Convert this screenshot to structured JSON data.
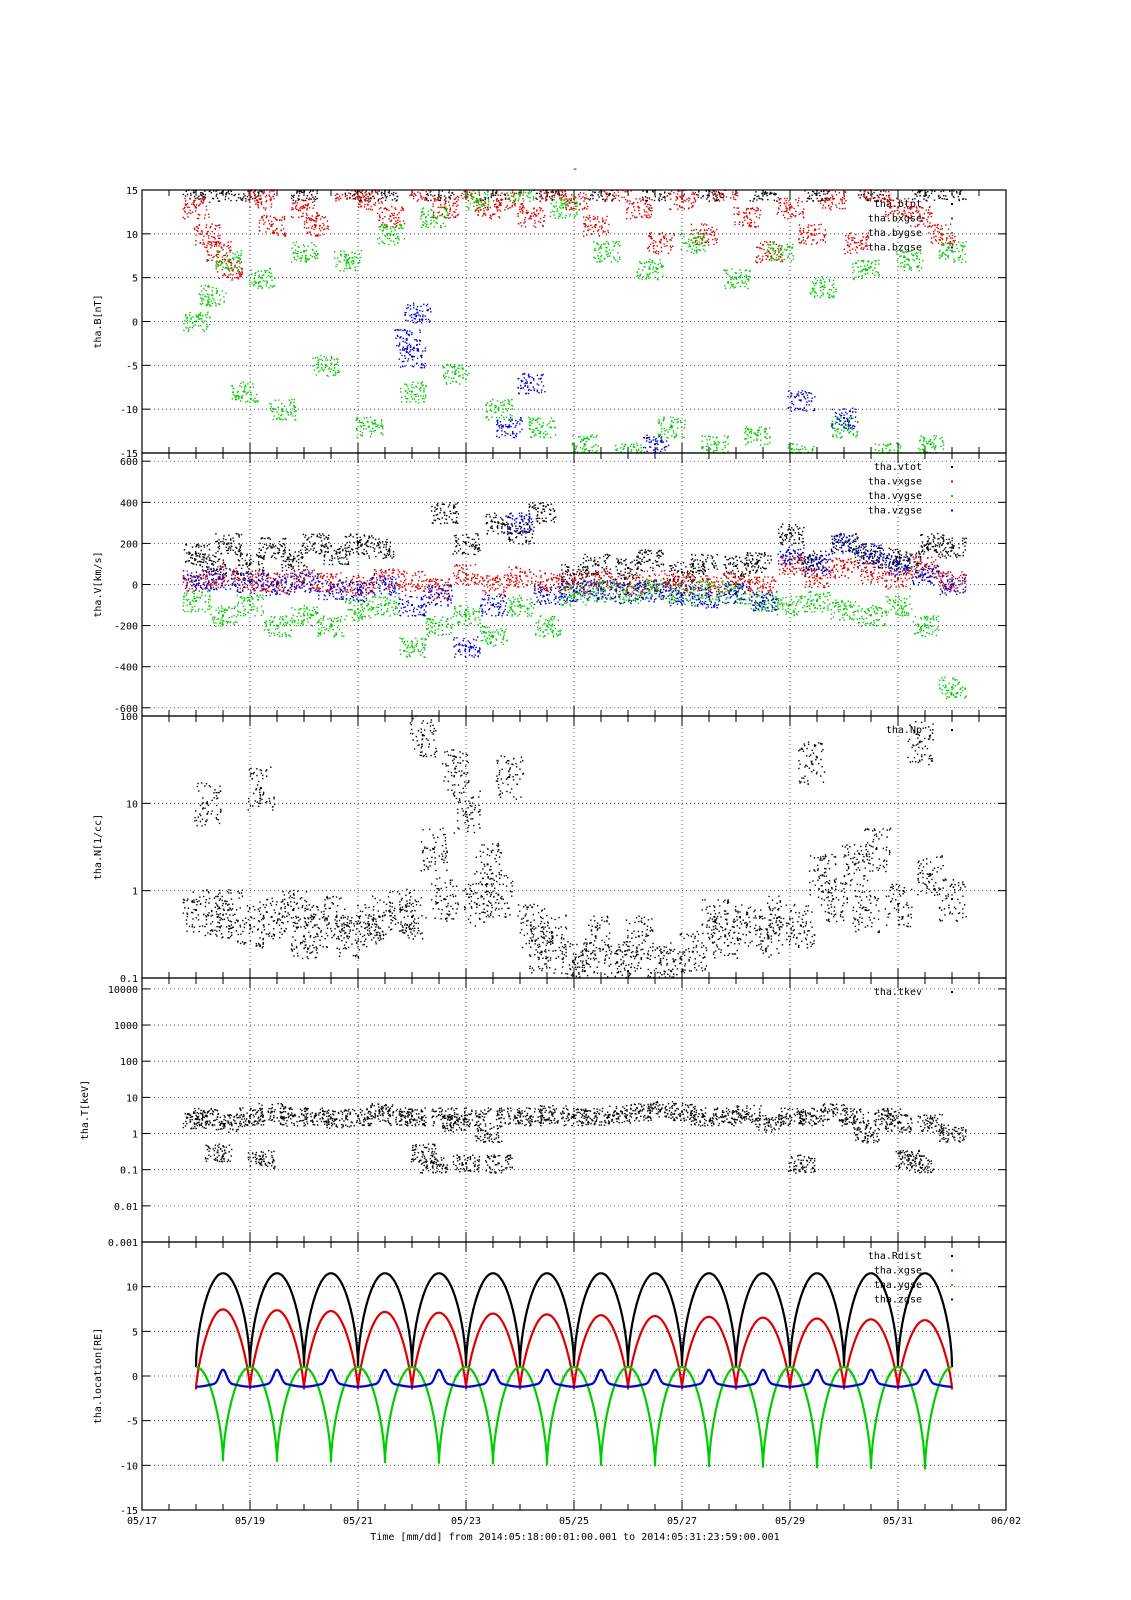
{
  "figure": {
    "title": "-",
    "time_label": "Time [mm/dd]  from 2014:05:18:00:01:00.001  to  2014:05:31:23:59:00.001",
    "time_ticks": [
      "05/17",
      "05/19",
      "05/21",
      "05/23",
      "05/25",
      "05/27",
      "05/29",
      "05/31",
      "06/02"
    ]
  },
  "colors": {
    "black": "#000000",
    "red": "#dd0000",
    "green": "#00cc00",
    "blue": "#0000cc"
  },
  "chart_data": [
    {
      "type": "scatter",
      "ylabel": "tha.B[nT]",
      "ylim": [
        -15,
        15
      ],
      "yticks": [
        -15,
        -10,
        -5,
        0,
        5,
        10,
        15
      ],
      "ytick_labels": [
        "-15",
        "-10",
        "-5",
        "0",
        "5",
        "10",
        "15"
      ],
      "xlim": [
        0,
        16
      ],
      "legend": "top-right",
      "series": [
        {
          "name": "tha.btot",
          "color": "#000000",
          "style": "points",
          "x": [
            1.0,
            1.5,
            2.0,
            3.0,
            4.0,
            4.5,
            5.5,
            6.5,
            7.5,
            8.5,
            9.5,
            10.5,
            11.5,
            12.5,
            13.5,
            14.5,
            15.0
          ],
          "y": [
            15,
            15,
            15,
            15,
            15,
            15,
            15,
            15,
            15,
            15,
            15,
            15,
            15,
            15,
            15,
            15,
            15
          ]
        },
        {
          "name": "tha.bxgse",
          "color": "#dd0000",
          "style": "points",
          "x": [
            1.0,
            1.2,
            1.4,
            1.6,
            2.2,
            2.4,
            3.0,
            3.2,
            3.8,
            4.2,
            4.6,
            5.2,
            5.6,
            6.0,
            6.4,
            6.8,
            7.2,
            7.6,
            8.0,
            8.4,
            8.8,
            9.2,
            9.6,
            10.0,
            10.4,
            10.8,
            11.2,
            11.6,
            12.0,
            12.4,
            12.8,
            13.2,
            13.6,
            14.0,
            14.4,
            14.8
          ],
          "y": [
            13,
            10,
            8,
            6,
            14,
            11,
            13,
            11,
            15,
            14,
            12,
            15,
            13,
            15,
            13,
            14,
            12,
            15,
            14,
            11,
            15,
            13,
            9,
            14,
            10,
            15,
            12,
            8,
            13,
            10,
            14,
            9,
            15,
            13,
            12,
            10
          ]
        },
        {
          "name": "tha.bygse",
          "color": "#00cc00",
          "style": "points",
          "x": [
            1.0,
            1.3,
            1.6,
            1.9,
            2.2,
            2.6,
            3.0,
            3.4,
            3.8,
            4.2,
            4.6,
            5.0,
            5.4,
            5.8,
            6.2,
            6.6,
            7.0,
            7.4,
            7.8,
            8.2,
            8.6,
            9.0,
            9.4,
            9.8,
            10.2,
            10.6,
            11.0,
            11.4,
            11.8,
            12.2,
            12.6,
            13.0,
            13.4,
            13.8,
            14.2,
            14.6,
            15.0
          ],
          "y": [
            0,
            3,
            7,
            -8,
            5,
            -10,
            8,
            -5,
            7,
            -12,
            10,
            -8,
            12,
            -6,
            14,
            -10,
            15,
            -12,
            13,
            -14,
            8,
            -15,
            6,
            -12,
            9,
            -14,
            5,
            -13,
            8,
            -15,
            4,
            -12,
            6,
            -15,
            7,
            -14,
            8
          ]
        },
        {
          "name": "tha.bzgse",
          "color": "#0000cc",
          "style": "points",
          "x": [
            4.9,
            5.0,
            5.1,
            6.8,
            7.2,
            9.5,
            12.2,
            13.0
          ],
          "y": [
            -2,
            -4,
            1,
            -12,
            -7,
            -14,
            -9,
            -11
          ]
        }
      ]
    },
    {
      "type": "scatter",
      "ylabel": "tha.V[km/s]",
      "ylim": [
        -640,
        640
      ],
      "yticks": [
        -600,
        -400,
        -200,
        0,
        200,
        400,
        600
      ],
      "ytick_labels": [
        "-600",
        "-400",
        "-200",
        "0",
        "200",
        "400",
        "600"
      ],
      "xlim": [
        0,
        16
      ],
      "legend": "top-right",
      "series": [
        {
          "name": "tha.vtot",
          "color": "#000000",
          "style": "points",
          "x": [
            1.0,
            1.3,
            1.6,
            2.0,
            2.4,
            2.8,
            3.2,
            3.6,
            4.0,
            4.4,
            5.6,
            6.0,
            6.6,
            7.0,
            7.4,
            8.0,
            8.4,
            9.0,
            9.4,
            10.0,
            10.4,
            11.0,
            11.4,
            12.0,
            12.4,
            13.0,
            13.4,
            13.8,
            14.2,
            14.6,
            15.0
          ],
          "y": [
            150,
            100,
            200,
            100,
            180,
            120,
            200,
            150,
            200,
            180,
            350,
            200,
            300,
            250,
            350,
            50,
            100,
            80,
            120,
            60,
            100,
            90,
            110,
            250,
            120,
            200,
            150,
            130,
            120,
            200,
            180
          ]
        },
        {
          "name": "tha.vxgse",
          "color": "#dd0000",
          "style": "points",
          "x": [
            1.0,
            1.5,
            2.0,
            2.5,
            3.0,
            3.5,
            4.0,
            4.5,
            5.0,
            5.5,
            6.0,
            6.5,
            7.0,
            7.5,
            8.0,
            8.5,
            9.0,
            9.5,
            10.0,
            10.5,
            11.0,
            11.5,
            12.0,
            12.5,
            13.0,
            13.5,
            14.0,
            14.5,
            15.0
          ],
          "y": [
            20,
            40,
            20,
            10,
            30,
            10,
            0,
            30,
            20,
            -20,
            50,
            0,
            40,
            20,
            10,
            30,
            0,
            20,
            10,
            0,
            10,
            -10,
            100,
            40,
            80,
            60,
            30,
            90,
            20
          ]
        },
        {
          "name": "tha.vygse",
          "color": "#00cc00",
          "style": "points",
          "x": [
            1.0,
            1.5,
            2.0,
            2.5,
            3.0,
            3.5,
            4.0,
            4.5,
            5.0,
            5.5,
            6.0,
            6.5,
            7.0,
            7.5,
            8.0,
            8.5,
            9.0,
            9.5,
            10.0,
            10.5,
            11.0,
            11.5,
            12.0,
            12.5,
            13.0,
            13.5,
            14.0,
            14.5,
            15.0
          ],
          "y": [
            -80,
            -150,
            -100,
            -200,
            -150,
            -200,
            -120,
            -100,
            -300,
            -200,
            -150,
            -250,
            -100,
            -200,
            -50,
            -30,
            -40,
            -20,
            -50,
            -30,
            -40,
            -80,
            -100,
            -80,
            -120,
            -150,
            -100,
            -200,
            -500
          ]
        },
        {
          "name": "tha.vzgse",
          "color": "#0000cc",
          "style": "points",
          "x": [
            1.0,
            1.5,
            2.0,
            2.5,
            3.0,
            3.5,
            4.0,
            4.5,
            5.0,
            5.5,
            6.0,
            6.5,
            7.0,
            7.5,
            8.0,
            8.5,
            9.0,
            9.5,
            10.0,
            10.5,
            11.0,
            11.5,
            12.0,
            12.5,
            13.0,
            13.5,
            14.0,
            14.5,
            15.0
          ],
          "y": [
            20,
            30,
            10,
            0,
            10,
            -20,
            -30,
            0,
            -100,
            -50,
            -300,
            -100,
            300,
            -50,
            -30,
            -20,
            -40,
            -30,
            -50,
            -60,
            -40,
            -80,
            150,
            100,
            200,
            150,
            100,
            50,
            0
          ]
        }
      ]
    },
    {
      "type": "scatter",
      "ylabel": "tha.N[1/cc]",
      "yscale": "log",
      "ylim": [
        0.1,
        100
      ],
      "yticks": [
        0.1,
        1,
        10,
        100
      ],
      "ytick_labels": [
        "0.1",
        "1",
        "10",
        "100"
      ],
      "xlim": [
        0,
        16
      ],
      "legend": "top-right",
      "series": [
        {
          "name": "tha.Np",
          "color": "#000000",
          "style": "points",
          "x": [
            1.0,
            1.2,
            1.4,
            1.6,
            2.0,
            2.2,
            2.4,
            2.8,
            3.0,
            3.2,
            3.6,
            3.8,
            4.2,
            4.4,
            4.8,
            5.0,
            5.2,
            5.4,
            5.6,
            5.8,
            6.0,
            6.2,
            6.4,
            6.6,
            6.8,
            7.2,
            7.4,
            7.6,
            8.0,
            8.2,
            8.4,
            8.8,
            9.0,
            9.2,
            9.6,
            9.8,
            10.2,
            10.6,
            10.8,
            11.2,
            11.6,
            11.8,
            12.2,
            12.4,
            12.6,
            12.8,
            13.2,
            13.4,
            13.6,
            14.0,
            14.4,
            14.6,
            15.0
          ],
          "y": [
            0.6,
            10,
            0.5,
            0.6,
            0.4,
            15,
            0.5,
            0.6,
            0.3,
            0.4,
            0.5,
            0.3,
            0.4,
            0.5,
            0.6,
            0.5,
            60,
            3,
            0.8,
            25,
            8,
            0.7,
            2,
            0.9,
            20,
            0.4,
            0.2,
            0.3,
            0.15,
            0.12,
            0.3,
            0.15,
            0.12,
            0.3,
            0.15,
            0.12,
            0.2,
            0.5,
            0.3,
            0.4,
            0.3,
            0.5,
            0.4,
            30,
            1.5,
            0.8,
            2,
            0.6,
            3,
            0.7,
            50,
            1.5,
            0.8
          ]
        }
      ]
    },
    {
      "type": "scatter",
      "ylabel": "tha.T[keV]",
      "yscale": "log",
      "ylim": [
        0.001,
        20000
      ],
      "yticks": [
        0.001,
        0.01,
        0.1,
        1,
        10,
        100,
        1000,
        10000
      ],
      "ytick_labels": [
        "0.001",
        "0.01",
        "0.1",
        "1",
        "10",
        "100",
        "1000",
        "10000"
      ],
      "xlim": [
        0,
        16
      ],
      "legend": "top-right",
      "series": [
        {
          "name": "tha.tkev",
          "color": "#000000",
          "style": "points",
          "x": [
            1.0,
            1.2,
            1.4,
            1.6,
            2.0,
            2.2,
            2.4,
            2.8,
            3.2,
            3.6,
            4.0,
            4.4,
            4.8,
            5.0,
            5.2,
            5.4,
            5.6,
            5.8,
            6.0,
            6.2,
            6.4,
            6.6,
            6.8,
            7.2,
            7.6,
            8.0,
            8.4,
            8.8,
            9.2,
            9.6,
            10.0,
            10.4,
            10.8,
            11.2,
            11.6,
            12.0,
            12.2,
            12.4,
            12.8,
            13.2,
            13.4,
            13.8,
            14.0,
            14.2,
            14.4,
            14.6,
            15.0
          ],
          "y": [
            2.5,
            3,
            0.3,
            2,
            3,
            0.2,
            4,
            3,
            3,
            2.5,
            3,
            4,
            3,
            3,
            0.3,
            0.15,
            3,
            2,
            0.15,
            3,
            1,
            0.15,
            3,
            3,
            3.5,
            3,
            3,
            3.5,
            4,
            4.5,
            4,
            3,
            3,
            3.5,
            2,
            3,
            0.15,
            3,
            4,
            3,
            1,
            3,
            2,
            0.2,
            0.15,
            2,
            1
          ]
        }
      ]
    },
    {
      "type": "line",
      "ylabel": "tha.location[RE]",
      "ylim": [
        -15,
        15
      ],
      "yticks": [
        -15,
        -10,
        -5,
        0,
        5,
        10
      ],
      "ytick_labels": [
        "-15",
        "-10",
        "-5",
        "0",
        "5",
        "10"
      ],
      "xlim": [
        0,
        16
      ],
      "x_label_ticks": [
        0,
        2,
        4,
        6,
        8,
        10,
        12,
        14,
        16
      ],
      "legend": "top-right",
      "orbit_start": 1.0,
      "orbit_end": 15.0,
      "orbit_period": 1.0,
      "series": [
        {
          "name": "tha.Rdist",
          "color": "#000000",
          "apogee": 11.5,
          "perigee": 1.0
        },
        {
          "name": "tha.xgse",
          "color": "#dd0000",
          "max_start": 7.5,
          "max_end": 6.2,
          "min": -1.5
        },
        {
          "name": "tha.ygse",
          "color": "#00cc00",
          "min_start": -9.5,
          "min_end": -10.5,
          "max": 1.0
        },
        {
          "name": "tha.zgse",
          "color": "#0000cc",
          "base": -1.0,
          "peak": 0.5
        }
      ]
    }
  ]
}
